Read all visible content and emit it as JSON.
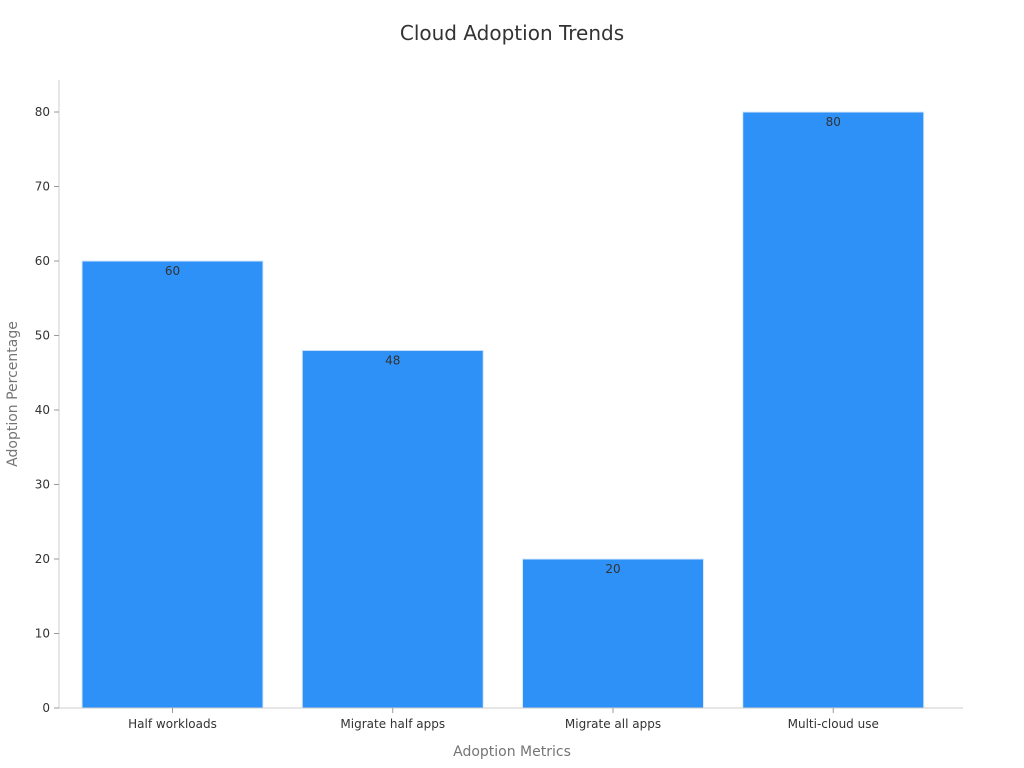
{
  "chart_data": {
    "type": "bar",
    "title": "Cloud Adoption Trends",
    "xlabel": "Adoption Metrics",
    "ylabel": "Adoption Percentage",
    "categories": [
      "Half workloads",
      "Migrate half apps",
      "Migrate all apps",
      "Multi-cloud use"
    ],
    "series": [
      {
        "values": [
          60,
          48,
          20,
          80
        ],
        "color": "#2e91f8"
      }
    ],
    "ylim": [
      0,
      84
    ],
    "yticks": [
      0,
      10,
      20,
      30,
      40,
      50,
      60,
      70,
      80
    ],
    "data_labels": true,
    "grid": false,
    "legend": "none"
  }
}
